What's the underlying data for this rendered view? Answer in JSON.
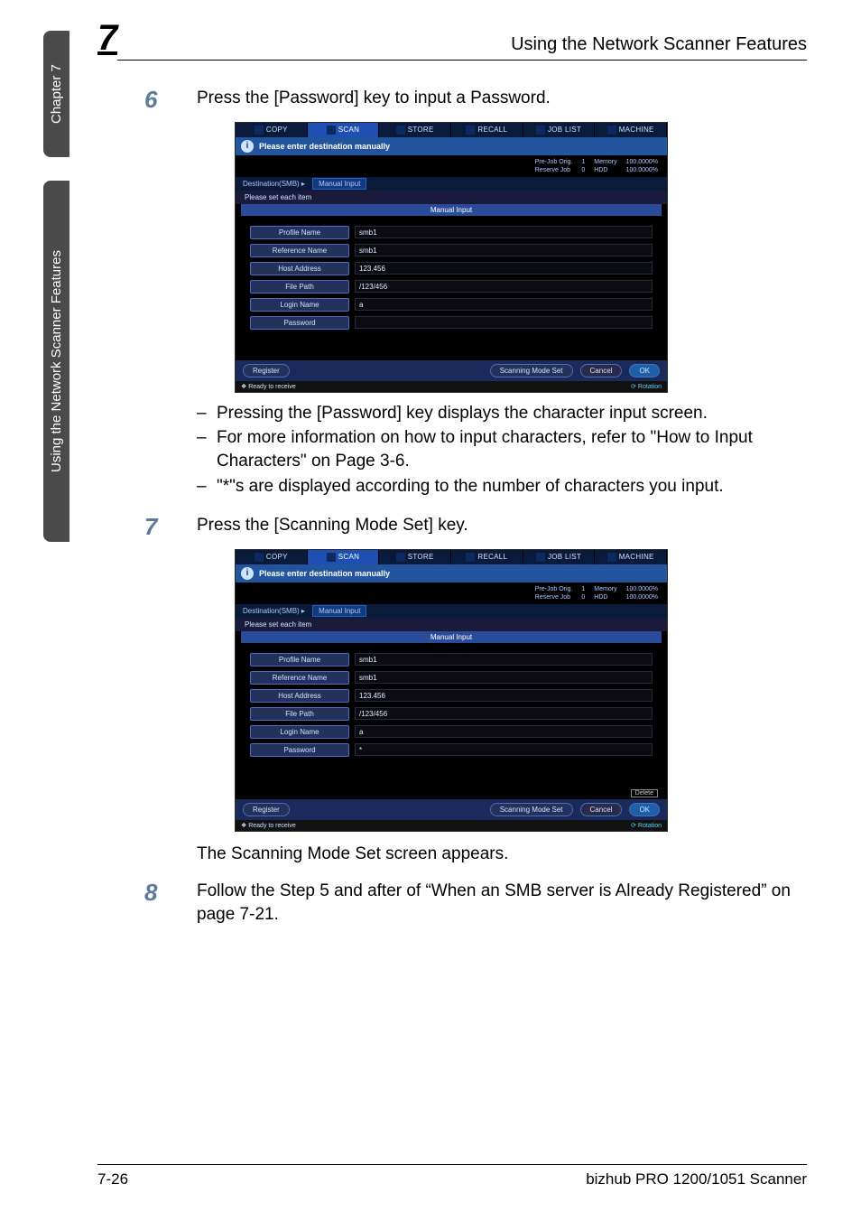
{
  "sidebar": {
    "chapter": "Chapter 7",
    "title": "Using the Network Scanner Features"
  },
  "header": {
    "chapter_num": "7",
    "title": "Using the Network Scanner Features"
  },
  "step6": {
    "num": "6",
    "text": "Press the [Password] key to input a Password."
  },
  "bullets6": [
    "Pressing the [Password] key displays the character input screen.",
    "For more information on how to input characters, refer to \"How to Input Characters\" on Page 3-6.",
    "\"*\"s are displayed according to the number of characters you input."
  ],
  "step7": {
    "num": "7",
    "text": "Press the [Scanning Mode Set] key."
  },
  "para7": "The Scanning Mode Set screen appears.",
  "step8": {
    "num": "8",
    "text": "Follow the Step 5 and after of “When an SMB server is Already Registered” on page 7-21."
  },
  "footer": {
    "left": "7-26",
    "right": "bizhub PRO 1200/1051 Scanner"
  },
  "device": {
    "tabs": [
      "COPY",
      "SCAN",
      "STORE",
      "RECALL",
      "JOB LIST",
      "MACHINE"
    ],
    "selected_tab": 1,
    "info_msg": "Please enter destination manually",
    "stat_rows": [
      [
        "Pre-Job Orig.",
        "1",
        "Memory",
        "100.0000%"
      ],
      [
        "Reserve Job",
        "0",
        "HDD",
        "100.0000%"
      ]
    ],
    "crumb_left": "Destination(SMB)",
    "crumb_link": "Manual Input",
    "list_header": "Please set each item",
    "column_header": "Manual Input",
    "fields": [
      {
        "label": "Profile Name",
        "value": "smb1"
      },
      {
        "label": "Reference Name",
        "value": "smb1"
      },
      {
        "label": "Host Address",
        "value": "123.456"
      },
      {
        "label": "File Path",
        "value": "/123/456"
      },
      {
        "label": "Login Name",
        "value": "a"
      },
      {
        "label": "Password",
        "value": ""
      }
    ],
    "fields2_password_value": "*",
    "footer_buttons": {
      "register": "Register",
      "mode": "Scanning Mode Set",
      "cancel": "Cancel",
      "ok": "OK"
    },
    "status_text": "Ready to receive",
    "rotation": "Rotation",
    "delete_chip": "Delete"
  },
  "colors": {
    "step_num": "#5a7b9a",
    "sidebar_bg": "#4a4a4a",
    "device_accent": "#1e4fb3"
  }
}
